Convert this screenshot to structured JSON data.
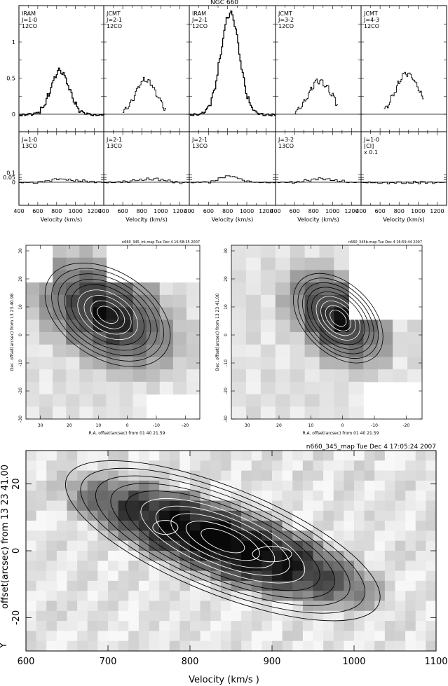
{
  "figure_title": "NGC 660",
  "spectra": {
    "top_panels": [
      {
        "l1": "IRAM",
        "l2": "J=1-0",
        "l3": "12CO",
        "peak": 0.62,
        "center": 830,
        "width": 260
      },
      {
        "l1": "JCMT",
        "l2": "J=2-1",
        "l3": "12CO",
        "peak": 0.5,
        "center": 840,
        "width": 300
      },
      {
        "l1": "IRAM",
        "l2": "J=2-1",
        "l3": "12CO",
        "peak": 1.42,
        "center": 820,
        "width": 260
      },
      {
        "l1": "JCMT",
        "l2": "J=3-2",
        "l3": "12CO",
        "peak": 0.48,
        "center": 860,
        "width": 330
      },
      {
        "l1": "JCMT",
        "l2": "J=4-3",
        "l3": "12CO",
        "peak": 0.58,
        "center": 880,
        "width": 330
      }
    ],
    "bottom_panels": [
      {
        "l1": "J=1-0",
        "l2": "13CO",
        "l3": "",
        "peak": 0.04,
        "center": 880,
        "width": 400
      },
      {
        "l1": "J=2-1",
        "l2": "13CO",
        "l3": "",
        "peak": 0.04,
        "center": 880,
        "width": 400
      },
      {
        "l1": "J=2-1",
        "l2": "13CO",
        "l3": "",
        "peak": 0.075,
        "center": 800,
        "width": 260
      },
      {
        "l1": "J=3-2",
        "l2": "13CO",
        "l3": "",
        "peak": 0.04,
        "center": 880,
        "width": 400
      },
      {
        "l1": "J=1-0",
        "l2": "[CI]",
        "l3": "x 0.1",
        "peak": 0.004,
        "center": 880,
        "width": 400
      }
    ],
    "y_ticks_top": [
      "1",
      "0.5",
      "0"
    ],
    "y_ticks_bottom": [
      "0.1",
      "0.05",
      "0"
    ],
    "x_ticks": [
      "400",
      "600",
      "800",
      "1000",
      "1200"
    ],
    "x_ticks_last": [
      "400",
      "600",
      "800",
      "1000",
      "1200"
    ],
    "x_label": "Velocity  (km/s)"
  },
  "maps": {
    "left_header": "n660_345_int.map Tue Dec  4 16:58:35 2007",
    "right_header": "n660_345b.map Tue Dec  4 16:59:44 2007",
    "left_ylabel": "Dec. offset(arcsec) from  13 23 40.98",
    "right_ylabel": "Dec. offset(arcsec) from  13 23 41.00",
    "xlabel": "R.A. offset(arcsec) from 01 40 21.59",
    "x_ticks": [
      "30",
      "20",
      "10",
      "0",
      "-10",
      "-20"
    ],
    "y_ticks": [
      "30",
      "20",
      "10",
      "0",
      "-10",
      "-20",
      "-30"
    ]
  },
  "pv": {
    "header": "n660_345_map Tue Dec  4 17:05:24 2007",
    "ylabel": "offset(arcsec) from  13 23 41.00",
    "y_marker": "Y",
    "xlabel": "Velocity     (km/s   )",
    "x_ticks": [
      "600",
      "700",
      "800",
      "900",
      "1000",
      "1100"
    ],
    "y_ticks": [
      "20",
      "0",
      "-20"
    ]
  },
  "chart_data": [
    {
      "type": "line",
      "title": "NGC 660",
      "xlabel": "Velocity  (km/s)",
      "xlim": [
        400,
        1300
      ],
      "series": [
        {
          "name": "IRAM J=1-0 12CO",
          "x": [
            400,
            600,
            700,
            800,
            830,
            900,
            1000,
            1300
          ],
          "values": [
            0,
            0.02,
            0.3,
            0.58,
            0.62,
            0.45,
            0.02,
            0
          ]
        },
        {
          "name": "JCMT J=2-1 12CO",
          "x": [
            600,
            700,
            800,
            850,
            950,
            1000,
            1050
          ],
          "values": [
            0,
            0.2,
            0.45,
            0.5,
            0.4,
            0.2,
            0
          ]
        },
        {
          "name": "IRAM J=2-1 12CO",
          "x": [
            400,
            600,
            700,
            800,
            820,
            900,
            1000,
            1300
          ],
          "values": [
            0,
            0.02,
            0.6,
            1.35,
            1.42,
            0.8,
            0.02,
            0
          ]
        },
        {
          "name": "JCMT J=3-2 12CO",
          "x": [
            650,
            750,
            850,
            950,
            1050
          ],
          "values": [
            0,
            0.35,
            0.48,
            0.42,
            0
          ]
        },
        {
          "name": "JCMT J=4-3 12CO",
          "x": [
            650,
            750,
            880,
            980,
            1050
          ],
          "values": [
            0.1,
            0.4,
            0.58,
            0.5,
            0
          ]
        }
      ]
    }
  ]
}
